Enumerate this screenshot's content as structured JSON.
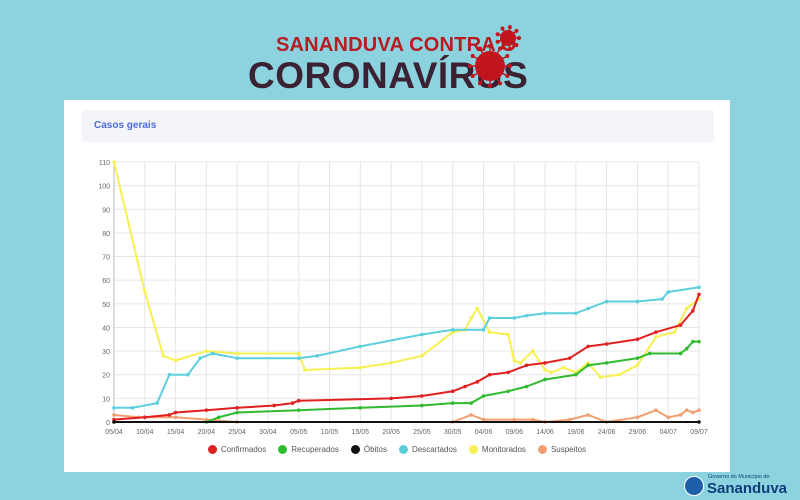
{
  "header": {
    "line1": "SANANDUVA CONTRA O",
    "line2": "CORONAVÍRUS",
    "virus_icon": "coronavirus-icon",
    "virus_color": "#c0141e",
    "text_color": "#3a2233"
  },
  "card": {
    "title": "Casos gerais",
    "title_color": "#4d6bd6"
  },
  "footer": {
    "logo_top": "Governo do Município de",
    "logo_name": "Sananduva",
    "logo_icon": "municipal-emblem-icon"
  },
  "chart_data": {
    "type": "line",
    "title": "",
    "xlabel": "",
    "ylabel": "",
    "ylim": [
      0,
      110
    ],
    "yticks": [
      0,
      10,
      20,
      30,
      40,
      50,
      60,
      70,
      80,
      90,
      100,
      110
    ],
    "xlim": [
      "2020-04-05",
      "2020-07-09"
    ],
    "xticks": [
      "05/04",
      "10/04",
      "15/04",
      "20/04",
      "25/04",
      "30/04",
      "05/05",
      "10/05",
      "15/05",
      "20/05",
      "25/05",
      "30/05",
      "04/06",
      "09/06",
      "14/06",
      "19/06",
      "24/06",
      "29/06",
      "04/07",
      "09/07"
    ],
    "grid": true,
    "legend_position": "bottom",
    "series": [
      {
        "name": "Confirmados",
        "color": "#e02020",
        "points": [
          [
            "2020-04-05",
            1
          ],
          [
            "2020-04-10",
            2
          ],
          [
            "2020-04-14",
            3
          ],
          [
            "2020-04-15",
            4
          ],
          [
            "2020-04-20",
            5
          ],
          [
            "2020-04-25",
            6
          ],
          [
            "2020-05-01",
            7
          ],
          [
            "2020-05-04",
            8
          ],
          [
            "2020-05-05",
            9
          ],
          [
            "2020-05-20",
            10
          ],
          [
            "2020-05-25",
            11
          ],
          [
            "2020-05-30",
            13
          ],
          [
            "2020-06-01",
            15
          ],
          [
            "2020-06-03",
            17
          ],
          [
            "2020-06-05",
            20
          ],
          [
            "2020-06-08",
            21
          ],
          [
            "2020-06-11",
            24
          ],
          [
            "2020-06-14",
            25
          ],
          [
            "2020-06-18",
            27
          ],
          [
            "2020-06-21",
            32
          ],
          [
            "2020-06-24",
            33
          ],
          [
            "2020-06-29",
            35
          ],
          [
            "2020-07-02",
            38
          ],
          [
            "2020-07-06",
            41
          ],
          [
            "2020-07-08",
            47
          ],
          [
            "2020-07-09",
            54
          ]
        ]
      },
      {
        "name": "Recuperados",
        "color": "#2fba2f",
        "points": [
          [
            "2020-04-05",
            0
          ],
          [
            "2020-04-20",
            0
          ],
          [
            "2020-04-22",
            2
          ],
          [
            "2020-04-25",
            4
          ],
          [
            "2020-05-05",
            5
          ],
          [
            "2020-05-15",
            6
          ],
          [
            "2020-05-25",
            7
          ],
          [
            "2020-05-30",
            8
          ],
          [
            "2020-06-02",
            8
          ],
          [
            "2020-06-04",
            11
          ],
          [
            "2020-06-08",
            13
          ],
          [
            "2020-06-11",
            15
          ],
          [
            "2020-06-14",
            18
          ],
          [
            "2020-06-19",
            20
          ],
          [
            "2020-06-21",
            24
          ],
          [
            "2020-06-24",
            25
          ],
          [
            "2020-06-29",
            27
          ],
          [
            "2020-07-01",
            29
          ],
          [
            "2020-07-06",
            29
          ],
          [
            "2020-07-07",
            31
          ],
          [
            "2020-07-08",
            34
          ],
          [
            "2020-07-09",
            34
          ]
        ]
      },
      {
        "name": "Óbitos",
        "color": "#111111",
        "points": [
          [
            "2020-04-05",
            0
          ],
          [
            "2020-07-09",
            0
          ]
        ]
      },
      {
        "name": "Descartados",
        "color": "#5ccfdc",
        "points": [
          [
            "2020-04-05",
            6
          ],
          [
            "2020-04-08",
            6
          ],
          [
            "2020-04-12",
            8
          ],
          [
            "2020-04-14",
            20
          ],
          [
            "2020-04-17",
            20
          ],
          [
            "2020-04-19",
            27
          ],
          [
            "2020-04-21",
            29
          ],
          [
            "2020-04-25",
            27
          ],
          [
            "2020-05-05",
            27
          ],
          [
            "2020-05-08",
            28
          ],
          [
            "2020-05-15",
            32
          ],
          [
            "2020-05-25",
            37
          ],
          [
            "2020-05-30",
            39
          ],
          [
            "2020-06-04",
            39
          ],
          [
            "2020-06-05",
            44
          ],
          [
            "2020-06-09",
            44
          ],
          [
            "2020-06-11",
            45
          ],
          [
            "2020-06-14",
            46
          ],
          [
            "2020-06-19",
            46
          ],
          [
            "2020-06-21",
            48
          ],
          [
            "2020-06-24",
            51
          ],
          [
            "2020-06-29",
            51
          ],
          [
            "2020-07-03",
            52
          ],
          [
            "2020-07-04",
            55
          ],
          [
            "2020-07-09",
            57
          ]
        ]
      },
      {
        "name": "Monitorados",
        "color": "#f6f051",
        "points": [
          [
            "2020-04-05",
            110
          ],
          [
            "2020-04-10",
            55
          ],
          [
            "2020-04-13",
            28
          ],
          [
            "2020-04-15",
            26
          ],
          [
            "2020-04-20",
            30
          ],
          [
            "2020-04-25",
            29
          ],
          [
            "2020-05-05",
            29
          ],
          [
            "2020-05-06",
            22
          ],
          [
            "2020-05-15",
            23
          ],
          [
            "2020-05-20",
            25
          ],
          [
            "2020-05-25",
            28
          ],
          [
            "2020-05-30",
            38
          ],
          [
            "2020-06-01",
            39
          ],
          [
            "2020-06-02",
            44
          ],
          [
            "2020-06-03",
            48
          ],
          [
            "2020-06-05",
            38
          ],
          [
            "2020-06-08",
            37
          ],
          [
            "2020-06-09",
            26
          ],
          [
            "2020-06-10",
            25
          ],
          [
            "2020-06-12",
            30
          ],
          [
            "2020-06-14",
            22
          ],
          [
            "2020-06-15",
            21
          ],
          [
            "2020-06-17",
            23
          ],
          [
            "2020-06-19",
            21
          ],
          [
            "2020-06-21",
            25
          ],
          [
            "2020-06-23",
            19
          ],
          [
            "2020-06-26",
            20
          ],
          [
            "2020-06-29",
            24
          ],
          [
            "2020-07-02",
            36
          ],
          [
            "2020-07-05",
            38
          ],
          [
            "2020-07-07",
            48
          ],
          [
            "2020-07-09",
            52
          ]
        ]
      },
      {
        "name": "Suspeitos",
        "color": "#f0a070",
        "points": [
          [
            "2020-04-05",
            3
          ],
          [
            "2020-04-09",
            2
          ],
          [
            "2020-04-15",
            2
          ],
          [
            "2020-04-20",
            1
          ],
          [
            "2020-04-25",
            0
          ],
          [
            "2020-05-30",
            0
          ],
          [
            "2020-06-02",
            3
          ],
          [
            "2020-06-04",
            1
          ],
          [
            "2020-06-09",
            1
          ],
          [
            "2020-06-12",
            1
          ],
          [
            "2020-06-14",
            0
          ],
          [
            "2020-06-18",
            1
          ],
          [
            "2020-06-21",
            3
          ],
          [
            "2020-06-24",
            0
          ],
          [
            "2020-06-29",
            2
          ],
          [
            "2020-07-02",
            5
          ],
          [
            "2020-07-04",
            2
          ],
          [
            "2020-07-06",
            3
          ],
          [
            "2020-07-07",
            5
          ],
          [
            "2020-07-08",
            4
          ],
          [
            "2020-07-09",
            5
          ]
        ]
      }
    ]
  }
}
